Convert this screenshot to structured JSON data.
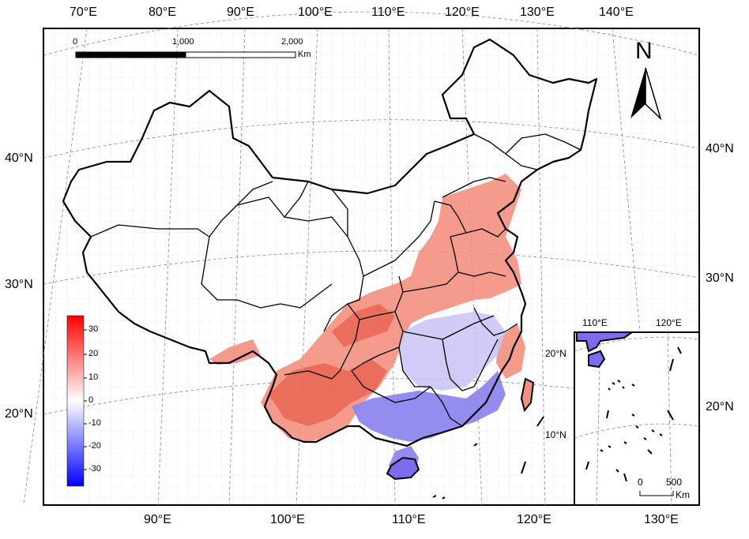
{
  "map": {
    "top_lon_labels": [
      "70°E",
      "80°E",
      "90°E",
      "100°E",
      "110°E",
      "120°E",
      "130°E",
      "140°E"
    ],
    "bottom_lon_labels": [
      "90°E",
      "100°E",
      "110°E",
      "120°E",
      "130°E"
    ],
    "left_lat_labels": [
      "40°N",
      "30°N",
      "20°N"
    ],
    "right_lat_labels": [
      "40°N",
      "30°N",
      "20°N"
    ],
    "scale_bar": {
      "ticks": [
        "0",
        "1,000",
        "2,000"
      ],
      "unit": "Km"
    },
    "north_arrow": {
      "label": "N",
      "icon": "north-arrow-icon"
    },
    "legend": {
      "ticks": [
        "30",
        "20",
        "10",
        "0",
        "-10",
        "-20",
        "-30"
      ],
      "range": [
        -35,
        35
      ],
      "colors": {
        "max": "#ff0000",
        "mid": "#ffffff",
        "min": "#0000ff"
      }
    },
    "inset": {
      "lon_labels": [
        "110°E",
        "120°E"
      ],
      "lat_labels": [
        "20°N",
        "10°N"
      ],
      "scale_ticks": [
        "0",
        "500"
      ],
      "scale_unit": "Km"
    },
    "colors": {
      "positive_area": "#f08070",
      "negative_area": "#8a7cf0",
      "border": "#000000",
      "graticule": "#888888"
    }
  }
}
